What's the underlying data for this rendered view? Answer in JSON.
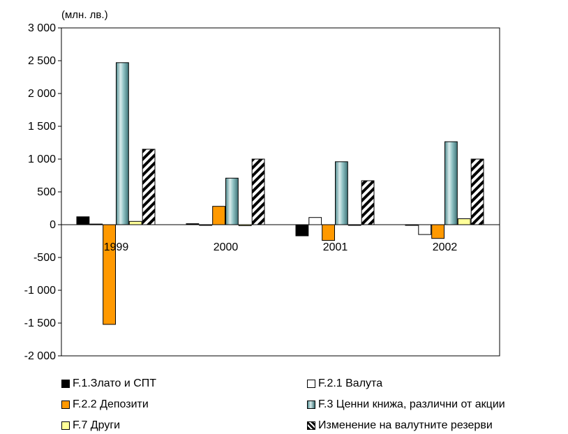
{
  "chart_data": {
    "type": "bar",
    "unit_label": "(млн. лв.)",
    "categories": [
      "1999",
      "2000",
      "2001",
      "2002"
    ],
    "ylim": [
      -2000,
      3000
    ],
    "yticks": [
      3000,
      2500,
      2000,
      1500,
      1000,
      500,
      0,
      -500,
      -1000,
      -1500,
      -2000
    ],
    "ytick_labels": [
      "3 000",
      "2 500",
      "2 000",
      "1 500",
      "1 000",
      "500",
      "0",
      "-500",
      "-1 000",
      "-1 500",
      "-2 000"
    ],
    "grid": false,
    "legend_position": "bottom",
    "series": [
      {
        "name": "F.1.Злато и СПТ",
        "color": "#000000",
        "pattern": "solid",
        "values": [
          120,
          15,
          -170,
          -10
        ]
      },
      {
        "name": "F.2.1 Валута",
        "color": "#ffffff",
        "pattern": "solid",
        "values": [
          10,
          -5,
          110,
          -150
        ]
      },
      {
        "name": "F.2.2 Депозити",
        "color": "#ff9900",
        "pattern": "solid",
        "values": [
          -1520,
          280,
          -240,
          -210
        ]
      },
      {
        "name": "F.3 Ценни книжа, различни от акции",
        "color": "#7fb3b6",
        "pattern": "cylinder",
        "values": [
          2470,
          710,
          960,
          1265
        ]
      },
      {
        "name": "F.7 Други",
        "color": "#ffff99",
        "pattern": "solid",
        "values": [
          50,
          -15,
          -10,
          90
        ]
      },
      {
        "name": "Изменение на валутните резерви",
        "color": "#000000",
        "pattern": "diagonal-hatch",
        "values": [
          1150,
          1000,
          670,
          1000
        ]
      }
    ]
  }
}
